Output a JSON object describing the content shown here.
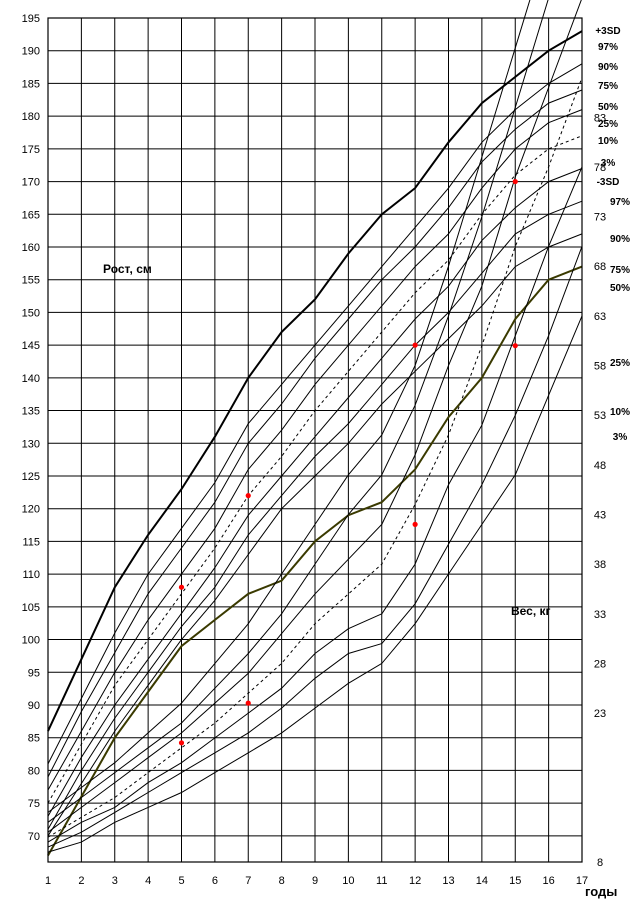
{
  "chart_data": {
    "type": "line",
    "x": [
      1,
      2,
      3,
      4,
      5,
      6,
      7,
      8,
      9,
      10,
      11,
      12,
      13,
      14,
      15,
      16,
      17
    ],
    "xlabel": "годы",
    "height_label": "Рост, см",
    "weight_label": "Вес, кг",
    "height_axis": {
      "ylim": [
        66,
        195
      ],
      "ticks": [
        "70",
        "75",
        "80",
        "85",
        "90",
        "95",
        "100",
        "105",
        "110",
        "115",
        "120",
        "125",
        "130",
        "135",
        "140",
        "145",
        "150",
        "155",
        "160",
        "165",
        "170",
        "175",
        "180",
        "185",
        "190",
        "195"
      ]
    },
    "weight_axis": {
      "ticks": [
        "8",
        "23",
        "28",
        "33",
        "38",
        "43",
        "48",
        "53",
        "58",
        "63",
        "68",
        "73",
        "78",
        "83"
      ]
    },
    "height_series": [
      {
        "name": "+3SD",
        "values": [
          86,
          97,
          108,
          116,
          123,
          131,
          140,
          147,
          152,
          159,
          165,
          169,
          176,
          182,
          186,
          190,
          193
        ]
      },
      {
        "name": "97%",
        "values": [
          81,
          91,
          101,
          110,
          117,
          124,
          133,
          139,
          145,
          151,
          157,
          163,
          169,
          176,
          181,
          185,
          188
        ]
      },
      {
        "name": "90%",
        "values": [
          79,
          89,
          98,
          107,
          114,
          121,
          130,
          136,
          143,
          149,
          155,
          160,
          166,
          173,
          178,
          182,
          184
        ]
      },
      {
        "name": "75%",
        "values": [
          77,
          86,
          95,
          103,
          110,
          117,
          126,
          132,
          139,
          145,
          151,
          157,
          162,
          169,
          175,
          179,
          181
        ]
      },
      {
        "name": "50%",
        "values": [
          75,
          84,
          93,
          100,
          107,
          114,
          122,
          128,
          135,
          141,
          147,
          153,
          158,
          165,
          171,
          175,
          177
        ]
      },
      {
        "name": "25%",
        "values": [
          73,
          82,
          90,
          97,
          104,
          111,
          119,
          125,
          131,
          137,
          143,
          149,
          154,
          161,
          166,
          170,
          172
        ]
      },
      {
        "name": "10%",
        "values": [
          71,
          80,
          88,
          95,
          102,
          108,
          116,
          122,
          128,
          133,
          139,
          145,
          150,
          156,
          162,
          165,
          167
        ]
      },
      {
        "name": "3%",
        "values": [
          70,
          78,
          86,
          93,
          100,
          106,
          113,
          120,
          125,
          130,
          136,
          141,
          146,
          151,
          157,
          160,
          162
        ]
      },
      {
        "name": "-3SD",
        "values": [
          67,
          76,
          85,
          92,
          99,
          103,
          107,
          109,
          115,
          119,
          121,
          126,
          134,
          140,
          149,
          155,
          157
        ]
      }
    ],
    "height_points": [
      {
        "x": 5,
        "y": 108
      },
      {
        "x": 7,
        "y": 122
      },
      {
        "x": 12,
        "y": 145
      },
      {
        "x": 15,
        "y": 170
      }
    ],
    "weight_series": [
      {
        "name": "97%",
        "values": [
          13,
          15.5,
          18,
          21,
          24,
          28,
          32,
          37,
          42,
          47,
          51,
          58,
          68,
          79,
          90,
          101,
          110
        ]
      },
      {
        "name": "90%",
        "values": [
          12,
          14.5,
          17,
          19.5,
          22,
          25.5,
          29,
          33,
          38,
          43,
          47,
          54,
          63,
          73,
          84,
          95,
          104
        ]
      },
      {
        "name": "75%",
        "values": [
          11,
          13.5,
          16,
          18.5,
          21,
          24,
          27,
          31,
          35,
          38.5,
          42,
          49,
          58,
          66,
          77,
          86,
          95
        ]
      },
      {
        "name": "50%",
        "values": [
          10.5,
          12.5,
          14.5,
          17,
          19.5,
          22,
          25,
          28,
          32,
          35,
          38,
          44,
          51,
          60,
          70,
          78,
          87
        ]
      },
      {
        "name": "25%",
        "values": [
          10,
          12,
          13.5,
          16,
          18,
          20.5,
          23,
          25.5,
          29,
          31.5,
          33,
          38,
          46,
          52,
          61,
          70,
          78
        ]
      },
      {
        "name": "10%",
        "values": [
          9.5,
          11,
          13,
          15,
          17,
          19,
          21,
          23.5,
          26.5,
          29,
          30,
          34,
          40,
          46,
          53,
          61,
          70
        ]
      },
      {
        "name": "3%",
        "values": [
          9,
          10,
          12,
          13.5,
          15,
          17,
          19,
          21,
          23.5,
          26,
          28,
          32,
          37,
          42,
          47,
          55,
          63
        ]
      }
    ],
    "weight_points": [
      {
        "x": 5,
        "y": 20
      },
      {
        "x": 7,
        "y": 24
      },
      {
        "x": 12,
        "y": 42
      },
      {
        "x": 15,
        "y": 60
      }
    ],
    "grid": true,
    "colors": {
      "bold_line": "#000000",
      "lower_bound_line": "#3a3a00",
      "centile_line": "#000000",
      "marker": "#ff0000",
      "grid": "#000000"
    }
  }
}
